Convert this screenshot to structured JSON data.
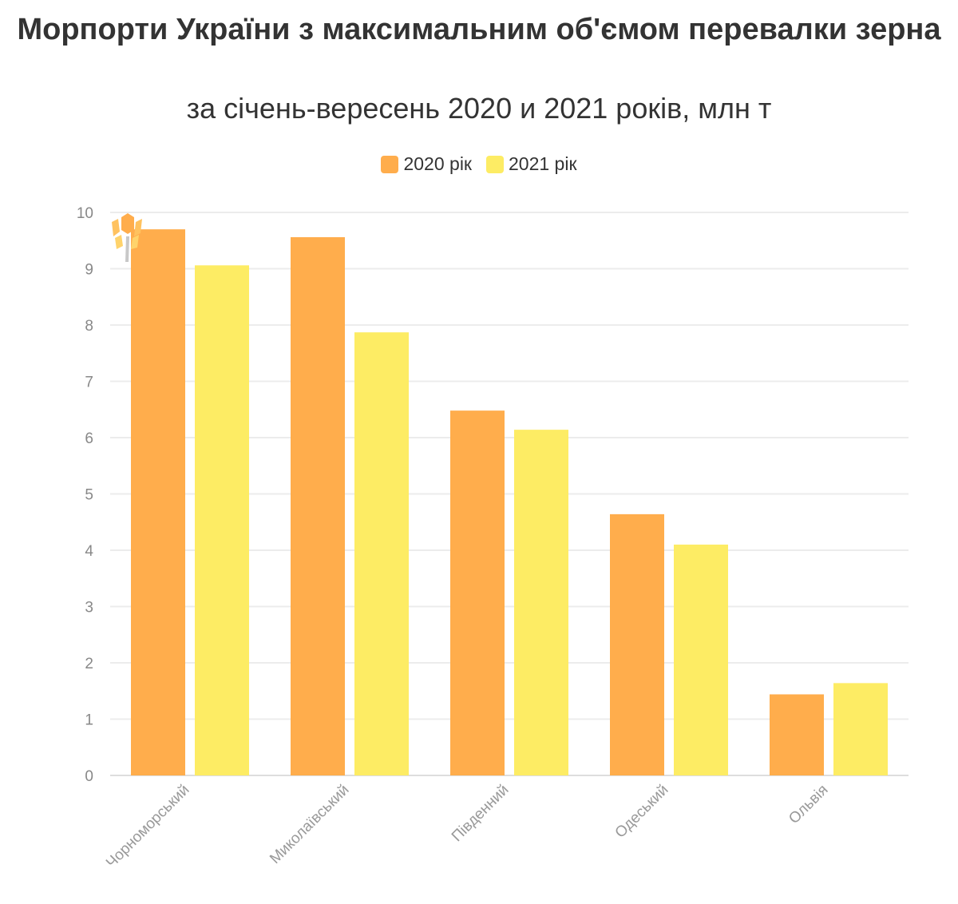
{
  "chart_data": {
    "type": "bar",
    "title": "Морпорти України з максимальним об'ємом перевалки зерна",
    "subtitle": "за січень-вересень 2020 и 2021 років, млн т",
    "categories": [
      "Чорноморський",
      "Миколаївський",
      "Південний",
      "Одеський",
      "Ольвія"
    ],
    "series": [
      {
        "name": "2020 рік",
        "color": "#FFAD4C",
        "values": [
          9.7,
          9.56,
          6.48,
          4.64,
          1.44
        ]
      },
      {
        "name": "2021 рік",
        "color": "#FDEC64",
        "values": [
          9.06,
          7.87,
          6.14,
          4.1,
          1.64
        ]
      }
    ],
    "ylim": [
      0,
      10
    ],
    "yticks": [
      "0",
      "1",
      "2",
      "3",
      "4",
      "5",
      "6",
      "7",
      "8",
      "9",
      "10"
    ],
    "grid": true,
    "legend_position": "top-center",
    "xlabel": "",
    "ylabel": ""
  }
}
